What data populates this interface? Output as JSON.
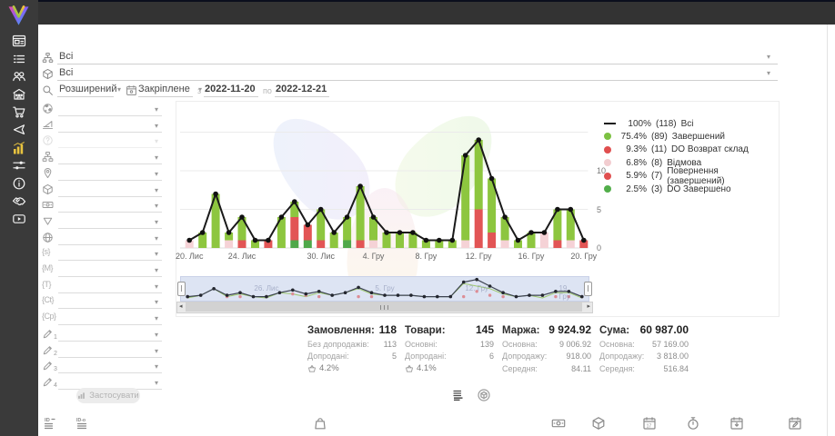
{
  "sidebar": {
    "items": [
      {
        "icon": "window-card"
      },
      {
        "icon": "list"
      },
      {
        "icon": "users"
      },
      {
        "icon": "storefront"
      },
      {
        "icon": "cart"
      },
      {
        "icon": "megaphone"
      },
      {
        "icon": "bar-chart",
        "active": true
      },
      {
        "icon": "sliders"
      },
      {
        "icon": "info"
      },
      {
        "icon": "handshake"
      },
      {
        "icon": "video"
      }
    ]
  },
  "header": {
    "category_filter": {
      "icon": "category-tree",
      "value": "Всі"
    },
    "product_filter": {
      "icon": "product-box",
      "value": "Всі"
    },
    "search_mode": {
      "icon": "search",
      "value": "Розширений"
    },
    "period": {
      "icon": "calendar",
      "mode": "Закріплене",
      "from_label": "з",
      "from": "2022-11-20",
      "to_label": "по",
      "to": "2022-12-21"
    }
  },
  "filter_panel": {
    "rows": [
      {
        "icon": "globe-solid"
      },
      {
        "icon": "level"
      },
      {
        "icon": "question",
        "disabled": true
      },
      {
        "icon": "sitemap"
      },
      {
        "icon": "pin"
      },
      {
        "icon": "cube"
      },
      {
        "icon": "banknote"
      },
      {
        "icon": "funnel"
      },
      {
        "icon": "globe-wire"
      },
      {
        "icon": "token",
        "token": "{s}"
      },
      {
        "icon": "token",
        "token": "{M}"
      },
      {
        "icon": "token",
        "token": "{T}"
      },
      {
        "icon": "token",
        "token": "{Ct}"
      },
      {
        "icon": "token",
        "token": "{Cp}"
      },
      {
        "icon": "pencil",
        "num": "1"
      },
      {
        "icon": "pencil",
        "num": "2"
      },
      {
        "icon": "pencil",
        "num": "3"
      },
      {
        "icon": "pencil",
        "num": "4"
      }
    ],
    "apply_label": "Застосувати"
  },
  "chart_data": {
    "type": "bar",
    "subtype": "stacked-bars-with-total-line",
    "date_range": [
      "2022-11-20",
      "2022-12-21"
    ],
    "x_tick_labels": [
      "20. Лис",
      "24. Лис",
      "30. Лис",
      "4. Гру",
      "8. Гру",
      "12. Гру",
      "16. Гру",
      "20. Гру"
    ],
    "x_tick_indices": [
      0,
      4,
      10,
      14,
      18,
      22,
      26,
      30
    ],
    "y_ticks": [
      0,
      5,
      10
    ],
    "ylim": [
      0,
      15
    ],
    "totals": [
      1,
      2,
      7,
      2,
      4,
      1,
      1,
      4,
      6,
      3,
      5,
      2,
      4,
      8,
      4,
      2,
      2,
      2,
      1,
      1,
      1,
      12,
      14,
      9,
      4,
      1,
      2,
      2,
      5,
      5,
      1
    ],
    "bars": [
      [
        [
          "pink",
          1
        ]
      ],
      [
        [
          "green",
          2
        ]
      ],
      [
        [
          "green",
          7
        ]
      ],
      [
        [
          "pink",
          1
        ],
        [
          "green",
          1
        ]
      ],
      [
        [
          "red",
          1
        ],
        [
          "green",
          3
        ]
      ],
      [
        [
          "green",
          1
        ]
      ],
      [
        [
          "red",
          1
        ]
      ],
      [
        [
          "green",
          4
        ]
      ],
      [
        [
          "darkgreen",
          1
        ],
        [
          "red",
          3
        ],
        [
          "green",
          2
        ]
      ],
      [
        [
          "darkgreen",
          1
        ],
        [
          "red",
          2
        ]
      ],
      [
        [
          "red",
          1
        ],
        [
          "green",
          4
        ]
      ],
      [
        [
          "green",
          2
        ]
      ],
      [
        [
          "darkgreen",
          1
        ],
        [
          "green",
          3
        ]
      ],
      [
        [
          "red",
          1
        ],
        [
          "green",
          7
        ]
      ],
      [
        [
          "pink",
          1
        ],
        [
          "green",
          3
        ]
      ],
      [
        [
          "green",
          2
        ]
      ],
      [
        [
          "green",
          2
        ]
      ],
      [
        [
          "green",
          2
        ]
      ],
      [
        [
          "green",
          1
        ]
      ],
      [
        [
          "green",
          1
        ]
      ],
      [
        [
          "green",
          1
        ]
      ],
      [
        [
          "pink",
          1
        ],
        [
          "green",
          11
        ]
      ],
      [
        [
          "red",
          5
        ],
        [
          "green",
          9
        ]
      ],
      [
        [
          "red",
          2
        ],
        [
          "green",
          7
        ]
      ],
      [
        [
          "pink",
          1
        ],
        [
          "green",
          3
        ]
      ],
      [
        [
          "green",
          1
        ]
      ],
      [
        [
          "green",
          2
        ]
      ],
      [
        [
          "pink",
          2
        ]
      ],
      [
        [
          "red",
          1
        ],
        [
          "green",
          4
        ]
      ],
      [
        [
          "pink",
          1
        ],
        [
          "green",
          4
        ]
      ],
      [
        [
          "red",
          1
        ]
      ]
    ],
    "colors": {
      "green": "#8dc63f",
      "red": "#e25555",
      "pink": "#f5d2d6",
      "darkgreen": "#4fa84a",
      "line": "#1a1a1a",
      "grid": "#ebebeb"
    },
    "legend": [
      {
        "marker": "line",
        "color": "#1a1a1a",
        "percent": "100%",
        "count": "(118)",
        "label": "Всі"
      },
      {
        "marker": "dot",
        "color": "#7cc142",
        "percent": "75.4%",
        "count": "(89)",
        "label": "Завершений"
      },
      {
        "marker": "dot",
        "color": "#e04f4f",
        "percent": "9.3%",
        "count": "(11)",
        "label": "DO Возврат склад"
      },
      {
        "marker": "dot",
        "color": "#f2cdd0",
        "percent": "6.8%",
        "count": "(8)",
        "label": "Відмова"
      },
      {
        "marker": "dot",
        "color": "#e04f4f",
        "percent": "5.9%",
        "count": "(7)",
        "label": "Повернення (завершений)"
      },
      {
        "marker": "dot",
        "color": "#52ae4a",
        "percent": "2.5%",
        "count": "(3)",
        "label": "DO Завершено"
      }
    ]
  },
  "minimap": {
    "tick_labels": [
      {
        "label": "26. Лис",
        "index": 6
      },
      {
        "label": "5. Гру",
        "index": 15
      },
      {
        "label": "12. Гру",
        "index": 22
      },
      {
        "label": "19. Гру",
        "index": 29
      }
    ]
  },
  "summary": {
    "columns": [
      {
        "title": "Замовлення:",
        "value": "118",
        "rows": [
          {
            "label": "Без допродажів:",
            "value": "113"
          },
          {
            "label": "Допродані:",
            "value": "5"
          }
        ],
        "rate": "4.2%"
      },
      {
        "title": "Товари:",
        "value": "145",
        "rows": [
          {
            "label": "Основні:",
            "value": "139"
          },
          {
            "label": "Допродані:",
            "value": "6"
          }
        ],
        "rate": "4.1%"
      },
      {
        "title": "Маржа:",
        "value": "9 924.92",
        "rows": [
          {
            "label": "Основна:",
            "value": "9 006.92"
          },
          {
            "label": "Допродажу:",
            "value": "918.00"
          },
          {
            "label": "Середня:",
            "value": "84.11"
          }
        ]
      },
      {
        "title": "Сума:",
        "value": "60 987.00",
        "rows": [
          {
            "label": "Основна:",
            "value": "57 169.00"
          },
          {
            "label": "Допродажу:",
            "value": "3 818.00"
          },
          {
            "label": "Середня:",
            "value": "516.84"
          }
        ]
      }
    ]
  },
  "view_toggles": [
    {
      "icon": "list-chart",
      "active": true
    },
    {
      "icon": "package-circle",
      "active": false
    }
  ],
  "footer": {
    "icons": [
      {
        "icon": "id-rows",
        "x": 48
      },
      {
        "icon": "ido-rows",
        "x": 84
      },
      {
        "icon": "bag",
        "x": 344
      },
      {
        "icon": "banknote",
        "x": 606
      },
      {
        "icon": "cube",
        "x": 650
      },
      {
        "icon": "calendar-17",
        "x": 706
      },
      {
        "icon": "stopwatch",
        "x": 754
      },
      {
        "icon": "calendar-in",
        "x": 802
      },
      {
        "icon": "calendar-edit",
        "x": 866
      }
    ]
  }
}
